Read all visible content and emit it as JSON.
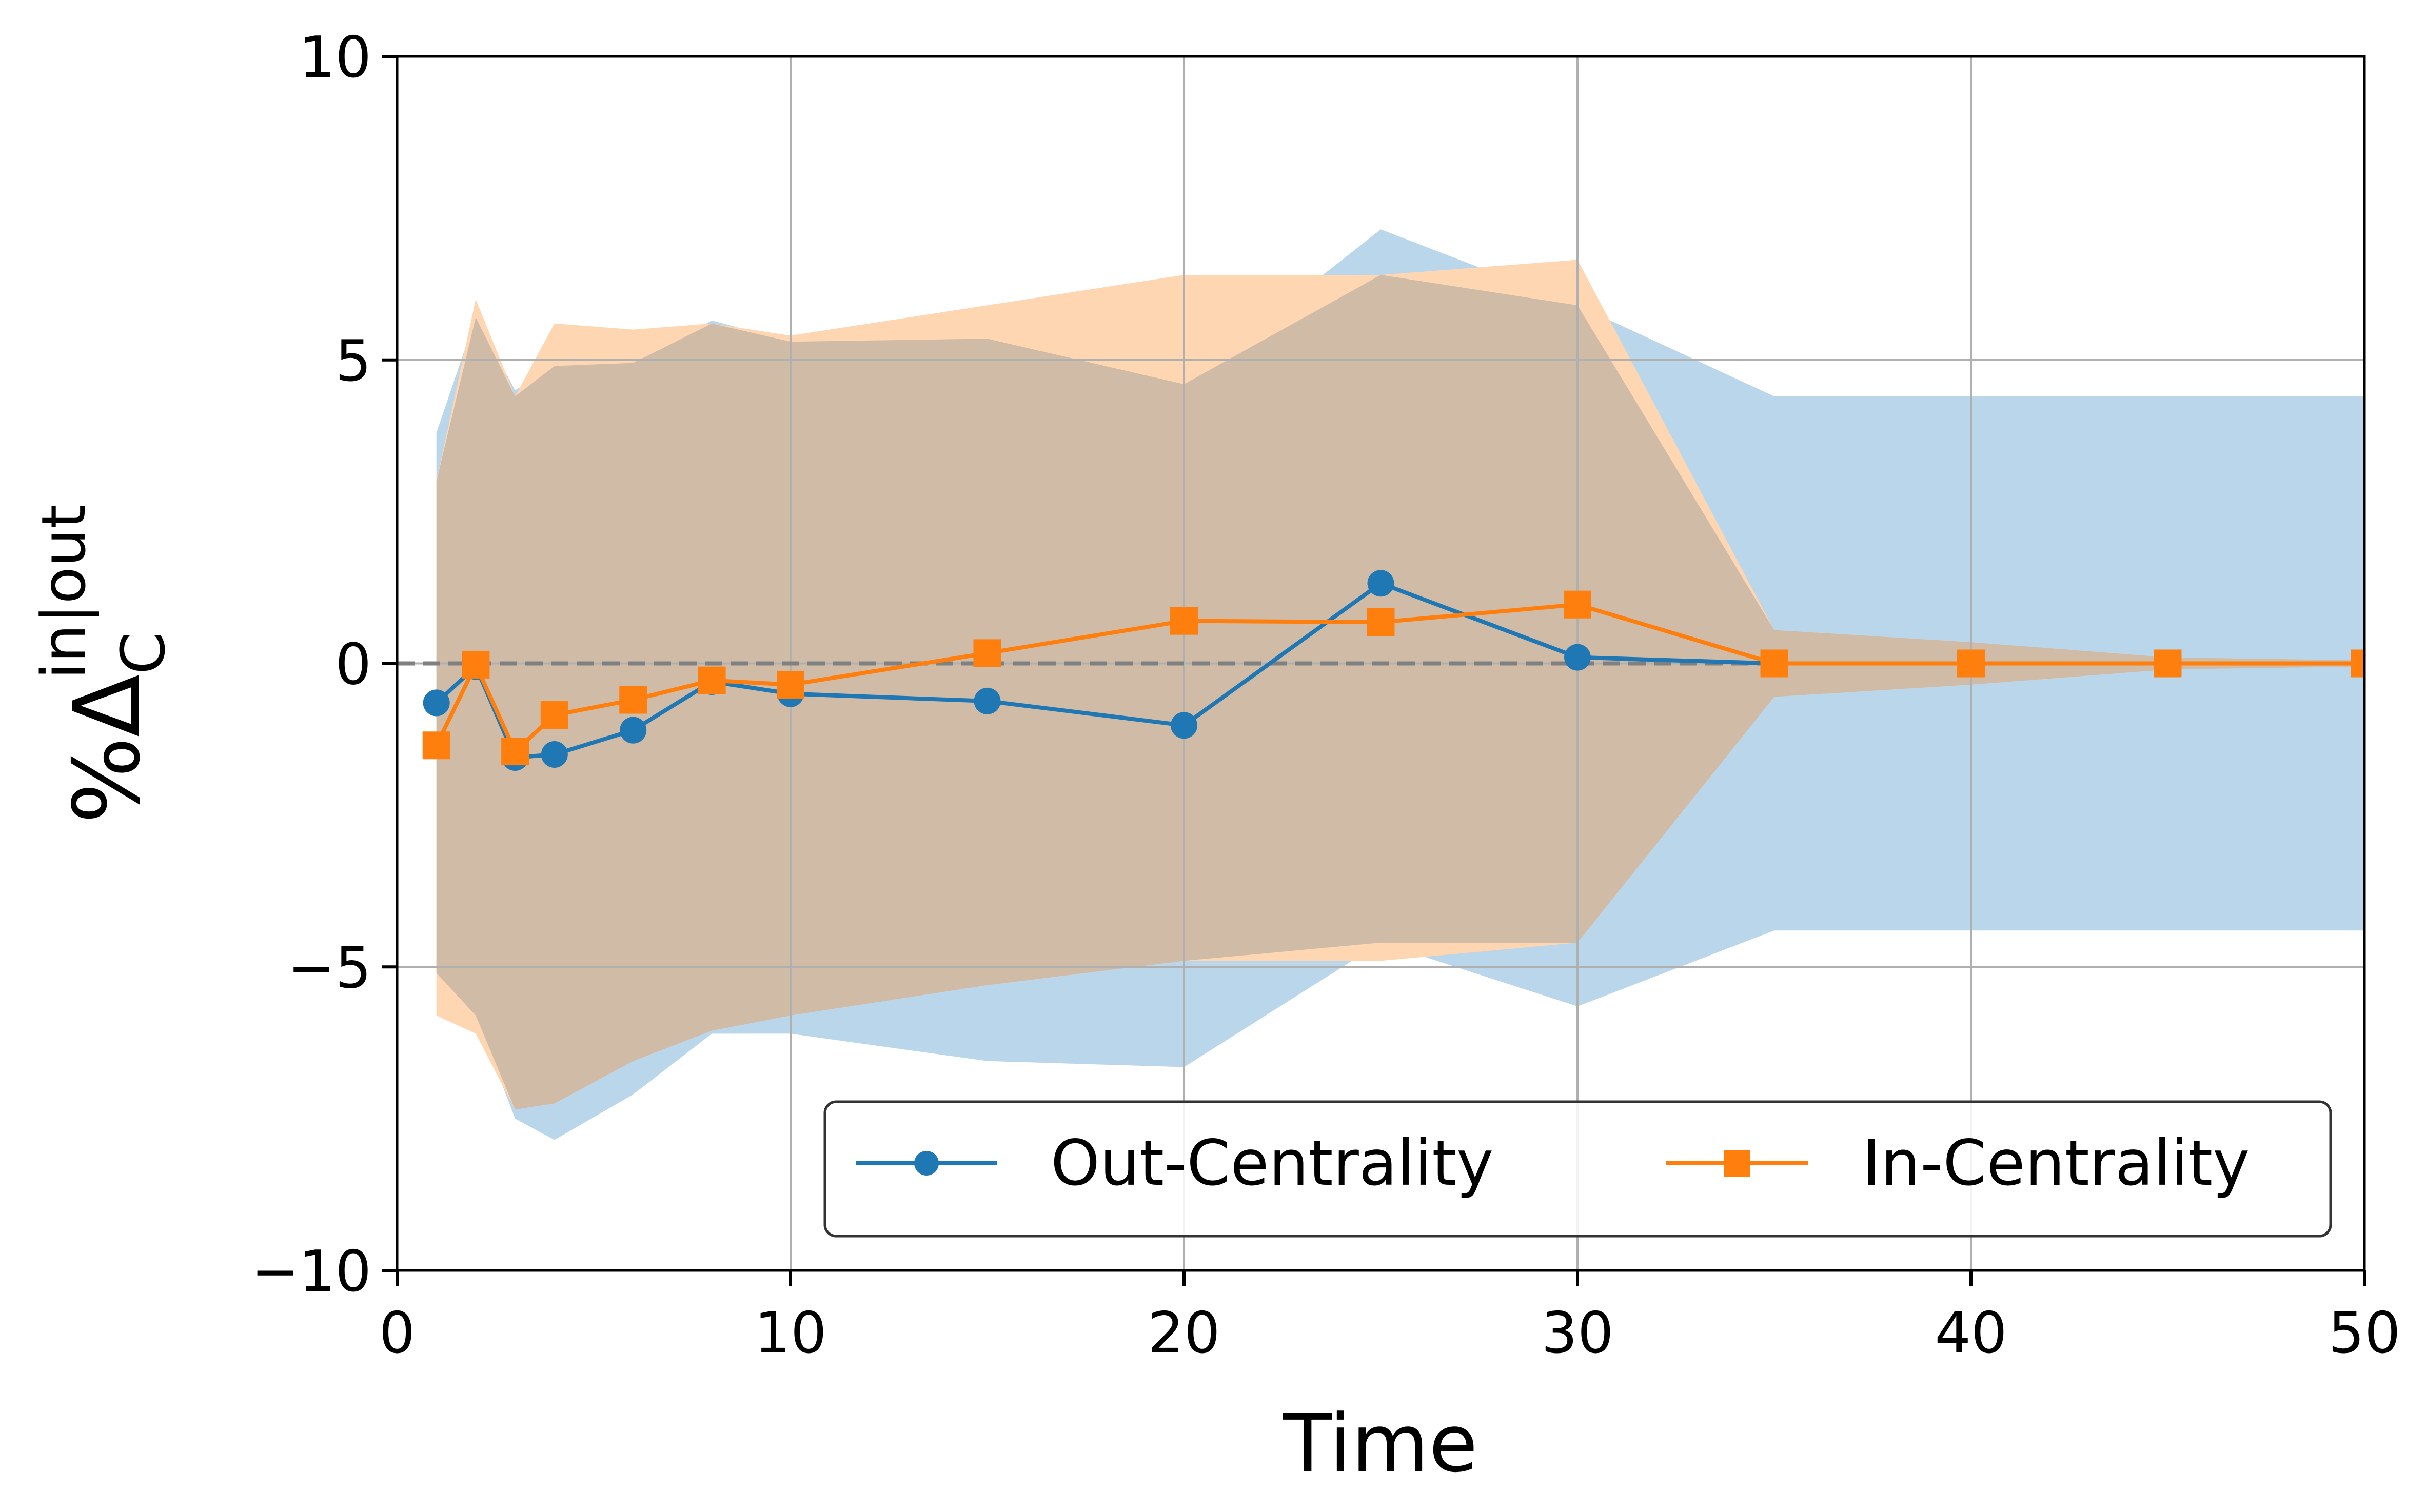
{
  "chart_data": {
    "type": "line",
    "xlabel": "Time",
    "ylabel": {
      "main": "%Δ",
      "sub": "C",
      "sup": "in|out"
    },
    "xlim": [
      0,
      50
    ],
    "ylim": [
      -10,
      10
    ],
    "xticks": [
      0,
      10,
      20,
      30,
      40,
      50
    ],
    "yticks": [
      -10,
      -5,
      0,
      5,
      10
    ],
    "xtick_labels": [
      "0",
      "10",
      "20",
      "30",
      "40",
      "50"
    ],
    "ytick_labels": [
      "−10",
      "−5",
      "0",
      "5",
      "10"
    ],
    "grid": true,
    "reference_line": {
      "y": 0,
      "style": "dashed",
      "color": "#808080"
    },
    "legend_position": "lower-right",
    "series": [
      {
        "name": "Out-Centrality",
        "color": "#1f77b4",
        "marker": "circle",
        "x": [
          1,
          2,
          3,
          4,
          6,
          8,
          10,
          15,
          20,
          25,
          30,
          35,
          40,
          45,
          50
        ],
        "values": [
          -0.65,
          -0.05,
          -1.55,
          -1.5,
          -1.1,
          -0.3,
          -0.5,
          -0.62,
          -1.02,
          1.32,
          0.1,
          0.0,
          0.0,
          0.0,
          0.0
        ],
        "band_x": [
          1,
          2,
          3,
          4,
          6,
          8,
          10,
          15,
          20,
          25,
          30,
          35,
          40,
          45,
          50
        ],
        "band_upper": [
          3.8,
          5.7,
          4.5,
          4.9,
          4.95,
          5.65,
          5.3,
          5.35,
          4.6,
          7.15,
          5.9,
          4.4,
          4.4,
          4.4,
          4.4
        ],
        "band_lower": [
          -5.1,
          -5.8,
          -7.5,
          -7.85,
          -7.1,
          -6.1,
          -6.1,
          -6.55,
          -6.65,
          -4.6,
          -5.65,
          -4.4,
          -4.4,
          -4.4,
          -4.4
        ]
      },
      {
        "name": "In-Centrality",
        "color": "#ff7f0e",
        "marker": "square",
        "x": [
          1,
          2,
          3,
          4,
          6,
          8,
          10,
          15,
          20,
          25,
          30,
          35,
          40,
          45,
          50
        ],
        "values": [
          -1.35,
          -0.02,
          -1.45,
          -0.85,
          -0.6,
          -0.28,
          -0.35,
          0.17,
          0.7,
          0.68,
          0.97,
          0.0,
          0.0,
          0.0,
          0.0
        ],
        "band_x": [
          1,
          2,
          3,
          4,
          6,
          8,
          10,
          15,
          20,
          25,
          30,
          35,
          40,
          45,
          50
        ],
        "band_upper": [
          3.0,
          6.0,
          4.4,
          5.6,
          5.5,
          5.6,
          5.4,
          5.9,
          6.4,
          6.4,
          6.65,
          0.55,
          0.35,
          0.1,
          0.05
        ],
        "band_lower": [
          -5.8,
          -6.1,
          -7.35,
          -7.25,
          -6.55,
          -6.05,
          -5.8,
          -5.3,
          -4.9,
          -4.9,
          -4.6,
          -0.55,
          -0.35,
          -0.1,
          -0.05
        ]
      }
    ],
    "band_colors": {
      "Out-Centrality": "#bad6ea",
      "In-Centrality": "#ffd6b2"
    },
    "band_overlap_color": "#cfbba6"
  }
}
